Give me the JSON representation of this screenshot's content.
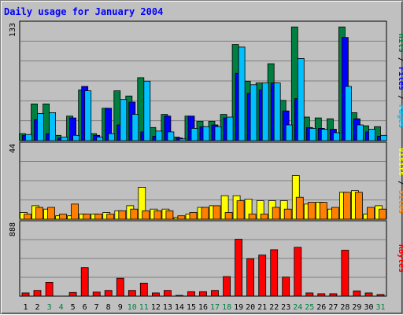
{
  "chart_data": {
    "type": "bar",
    "title": "Daily usage for January 2004",
    "x": [
      "1",
      "2",
      "3",
      "4",
      "5",
      "6",
      "7",
      "8",
      "9",
      "10",
      "11",
      "12",
      "13",
      "14",
      "15",
      "16",
      "17",
      "18",
      "19",
      "20",
      "21",
      "22",
      "23",
      "24",
      "25",
      "26",
      "27",
      "28",
      "29",
      "30",
      "31"
    ],
    "weekend_days": [
      "3",
      "4",
      "10",
      "11",
      "17",
      "18",
      "24",
      "25",
      "31"
    ],
    "panels": [
      {
        "name": "hits",
        "ymax_label": "133",
        "ylim": [
          0,
          133
        ],
        "series": [
          {
            "name": "Hits",
            "color": "#008040",
            "values": [
              8,
              42,
              42,
              6,
              28,
              58,
              8,
              37,
              57,
              51,
              72,
              15,
              30,
              4,
              28,
              22,
              22,
              30,
              110,
              68,
              66,
              88,
              46,
              130,
              27,
              26,
              25,
              130,
              32,
              17,
              16
            ]
          },
          {
            "name": "Files",
            "color": "#0000ff",
            "values": [
              6,
              24,
              8,
              3,
              26,
              62,
              6,
              37,
              18,
              44,
              10,
              5,
              28,
              3,
              28,
              16,
              18,
              26,
              77,
              54,
              58,
              66,
              34,
              48,
              15,
              14,
              13,
              118,
              25,
              10,
              5
            ]
          },
          {
            "name": "Pages",
            "color": "#00c0ff",
            "values": [
              7,
              31,
              32,
              4,
              6,
              57,
              4,
              8,
              47,
              30,
              68,
              11,
              10,
              2,
              14,
              16,
              16,
              27,
              107,
              64,
              66,
              66,
              18,
              94,
              14,
              13,
              9,
              62,
              18,
              13,
              6
            ]
          }
        ]
      },
      {
        "name": "visits",
        "ymax_label": "44",
        "ylim": [
          0,
          44
        ],
        "series": [
          {
            "name": "Visits",
            "color": "#ffff00",
            "values": [
              4,
              8,
              6,
              2,
              2,
              3,
              3,
              4,
              5,
              8,
              19,
              6,
              6,
              1,
              3,
              7,
              8,
              14,
              14,
              12,
              11,
              11,
              11,
              26,
              9,
              10,
              6,
              16,
              17,
              3,
              8
            ]
          },
          {
            "name": "Sites",
            "color": "#ff8000",
            "values": [
              3,
              7,
              7,
              3,
              9,
              3,
              3,
              3,
              5,
              6,
              5,
              5,
              5,
              2,
              4,
              7,
              8,
              4,
              11,
              3,
              3,
              7,
              6,
              13,
              10,
              10,
              7,
              16,
              16,
              7,
              6
            ]
          }
        ]
      },
      {
        "name": "kbytes",
        "ymax_label": "888",
        "ylim": [
          0,
          888
        ],
        "series": [
          {
            "name": "KBytes",
            "color": "#ff0000",
            "values": [
              40,
              70,
              170,
              0,
              45,
              350,
              50,
              70,
              220,
              70,
              160,
              40,
              70,
              10,
              55,
              55,
              70,
              240,
              700,
              460,
              505,
              570,
              235,
              600,
              40,
              30,
              30,
              565,
              65,
              40,
              20
            ]
          }
        ]
      }
    ],
    "legend_right": [
      [
        {
          "text": "Hits",
          "color": "#008040"
        },
        {
          "text": " / ",
          "color": "#000000"
        },
        {
          "text": "Files",
          "color": "#0000ff"
        },
        {
          "text": " / ",
          "color": "#000000"
        },
        {
          "text": "Pages",
          "color": "#00c0ff"
        }
      ],
      [
        {
          "text": "Visits",
          "color": "#ffff00"
        },
        {
          "text": " / ",
          "color": "#000000"
        },
        {
          "text": "Sites",
          "color": "#ff8000"
        }
      ],
      [
        {
          "text": "KBytes",
          "color": "#ff0000"
        }
      ]
    ]
  },
  "colors": {
    "title": "#0000ff",
    "weekday_label": "#000000",
    "weekend_label": "#008040",
    "panel_bg": "#c0c0c0"
  }
}
